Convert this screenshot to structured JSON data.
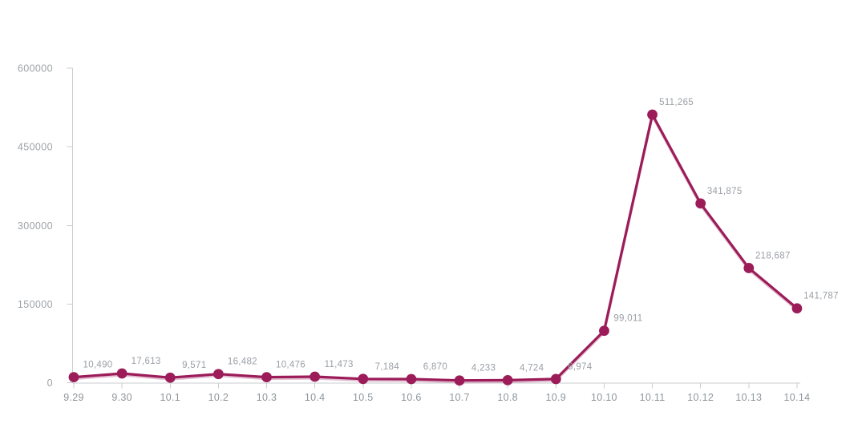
{
  "chart_data": {
    "type": "line",
    "title": "",
    "xlabel": "",
    "ylabel": "",
    "categories": [
      "9.29",
      "9.30",
      "10.1",
      "10.2",
      "10.3",
      "10.4",
      "10.5",
      "10.6",
      "10.7",
      "10.8",
      "10.9",
      "10.10",
      "10.11",
      "10.12",
      "10.13",
      "10.14"
    ],
    "values": [
      10490,
      17613,
      9571,
      16482,
      10476,
      11473,
      7184,
      6870,
      4233,
      4724,
      6974,
      99011,
      511265,
      341875,
      218687,
      141787
    ],
    "point_labels": [
      "10,490",
      "17,613",
      "9,571",
      "16,482",
      "10,476",
      "11,473",
      "7,184",
      "6,870",
      "4,233",
      "4,724",
      "6,974",
      "99,011",
      "511,265",
      "341,875",
      "218,687",
      "141,787"
    ],
    "y_ticks": [
      0,
      150000,
      300000,
      450000,
      600000
    ],
    "y_tick_labels": [
      "0",
      "150000",
      "300000",
      "450000",
      "600000"
    ],
    "ylim": [
      0,
      600000
    ],
    "grid": false,
    "legend_position": "none",
    "colors": {
      "line": "#9B1C59",
      "point": "#9B1C59",
      "value_label": "#9A9EA4",
      "x_axis_label": "#8F959B",
      "y_axis_label": "#9EA2A7",
      "axis_line": "#C9CDD1"
    }
  }
}
